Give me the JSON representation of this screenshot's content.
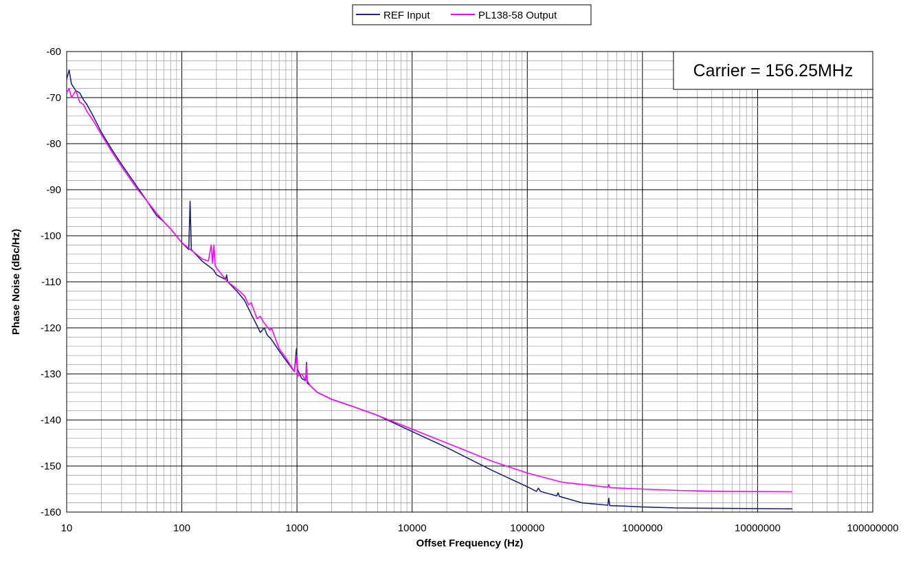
{
  "chart_data": {
    "type": "line",
    "title": "",
    "xlabel": "Offset Frequency (Hz)",
    "ylabel": "Phase Noise (dBc/Hz)",
    "x_scale": "log",
    "xlim": [
      10,
      100000000
    ],
    "ylim": [
      -160,
      -60
    ],
    "x_ticks": [
      "10",
      "100",
      "1000",
      "10000",
      "100000",
      "1000000",
      "10000000",
      "100000000"
    ],
    "y_ticks": [
      "-60",
      "-70",
      "-80",
      "-90",
      "-100",
      "-110",
      "-120",
      "-130",
      "-140",
      "-150",
      "-160"
    ],
    "grid": true,
    "legend_position": "top-center",
    "annotation": "Carrier = 156.25MHz",
    "series": [
      {
        "name": "REF Input",
        "color": "#1a237e",
        "points": [
          [
            10,
            -66
          ],
          [
            10.5,
            -64
          ],
          [
            11,
            -67
          ],
          [
            12,
            -68.5
          ],
          [
            13,
            -69
          ],
          [
            14,
            -70.5
          ],
          [
            15,
            -71.5
          ],
          [
            17,
            -74
          ],
          [
            20,
            -77.5
          ],
          [
            25,
            -81.5
          ],
          [
            30,
            -84.5
          ],
          [
            40,
            -89
          ],
          [
            50,
            -92.5
          ],
          [
            60,
            -95.5
          ],
          [
            70,
            -97
          ],
          [
            80,
            -98.5
          ],
          [
            100,
            -101.5
          ],
          [
            115,
            -103
          ],
          [
            118,
            -92.5
          ],
          [
            121,
            -103
          ],
          [
            150,
            -105.5
          ],
          [
            180,
            -107
          ],
          [
            190,
            -107.5
          ],
          [
            200,
            -108.5
          ],
          [
            240,
            -109.5
          ],
          [
            245,
            -108.5
          ],
          [
            250,
            -110
          ],
          [
            300,
            -112
          ],
          [
            350,
            -114
          ],
          [
            400,
            -117
          ],
          [
            450,
            -119.5
          ],
          [
            480,
            -121
          ],
          [
            520,
            -120
          ],
          [
            550,
            -121.5
          ],
          [
            600,
            -122.5
          ],
          [
            700,
            -125
          ],
          [
            800,
            -127
          ],
          [
            950,
            -129.5
          ],
          [
            990,
            -124.5
          ],
          [
            1010,
            -129
          ],
          [
            1100,
            -131
          ],
          [
            1190,
            -131.5
          ],
          [
            1210,
            -127.5
          ],
          [
            1230,
            -132
          ],
          [
            1300,
            -132.5
          ],
          [
            1500,
            -134
          ],
          [
            2000,
            -135.5
          ],
          [
            3000,
            -137
          ],
          [
            5000,
            -139
          ],
          [
            10000,
            -142.5
          ],
          [
            20000,
            -146
          ],
          [
            50000,
            -151
          ],
          [
            100000,
            -154.5
          ],
          [
            120000,
            -155.5
          ],
          [
            125000,
            -154.8
          ],
          [
            130000,
            -155.5
          ],
          [
            180000,
            -156.5
          ],
          [
            185000,
            -155.8
          ],
          [
            190000,
            -156.6
          ],
          [
            300000,
            -158
          ],
          [
            500000,
            -158.5
          ],
          [
            510000,
            -157
          ],
          [
            520000,
            -158.6
          ],
          [
            700000,
            -158.7
          ],
          [
            1000000,
            -158.9
          ],
          [
            2000000,
            -159.1
          ],
          [
            5000000,
            -159.2
          ],
          [
            20000000,
            -159.3
          ]
        ]
      },
      {
        "name": "PL138-58 Output",
        "color": "#ff00ff",
        "points": [
          [
            10,
            -69
          ],
          [
            10.5,
            -68
          ],
          [
            11,
            -70
          ],
          [
            12,
            -68.5
          ],
          [
            13,
            -71
          ],
          [
            14,
            -71.5
          ],
          [
            15,
            -73
          ],
          [
            17,
            -75
          ],
          [
            20,
            -78
          ],
          [
            25,
            -82
          ],
          [
            30,
            -85
          ],
          [
            40,
            -89.5
          ],
          [
            50,
            -92.5
          ],
          [
            60,
            -95
          ],
          [
            70,
            -97
          ],
          [
            80,
            -98.5
          ],
          [
            100,
            -101.5
          ],
          [
            150,
            -105
          ],
          [
            170,
            -105.5
          ],
          [
            180,
            -102
          ],
          [
            185,
            -106
          ],
          [
            190,
            -102
          ],
          [
            195,
            -106.5
          ],
          [
            200,
            -107
          ],
          [
            250,
            -110
          ],
          [
            300,
            -111.5
          ],
          [
            350,
            -113
          ],
          [
            380,
            -115
          ],
          [
            400,
            -114.5
          ],
          [
            450,
            -118
          ],
          [
            480,
            -117.5
          ],
          [
            520,
            -119
          ],
          [
            580,
            -120.5
          ],
          [
            600,
            -120
          ],
          [
            700,
            -124.5
          ],
          [
            800,
            -126.5
          ],
          [
            950,
            -129.5
          ],
          [
            990,
            -126
          ],
          [
            1010,
            -130.5
          ],
          [
            1100,
            -130
          ],
          [
            1190,
            -131.5
          ],
          [
            1210,
            -128
          ],
          [
            1230,
            -131.5
          ],
          [
            1300,
            -132.5
          ],
          [
            1500,
            -134
          ],
          [
            2000,
            -135.5
          ],
          [
            3000,
            -137
          ],
          [
            5000,
            -139
          ],
          [
            10000,
            -142
          ],
          [
            20000,
            -145
          ],
          [
            50000,
            -149
          ],
          [
            100000,
            -151.5
          ],
          [
            200000,
            -153.5
          ],
          [
            500000,
            -154.6
          ],
          [
            510000,
            -154
          ],
          [
            520000,
            -154.7
          ],
          [
            1000000,
            -155
          ],
          [
            2000000,
            -155.3
          ],
          [
            5000000,
            -155.5
          ],
          [
            20000000,
            -155.6
          ]
        ]
      }
    ]
  }
}
